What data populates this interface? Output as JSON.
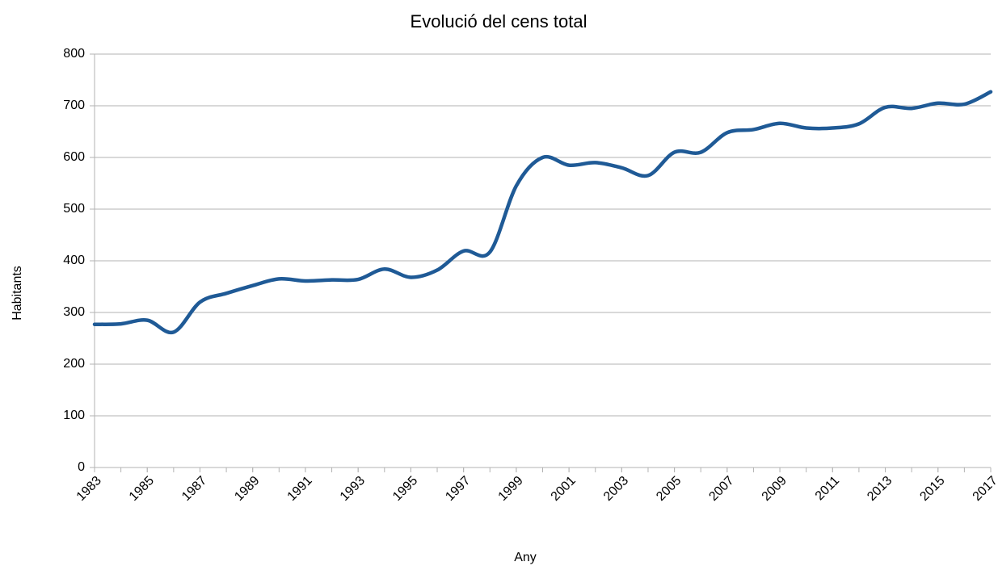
{
  "chart_data": {
    "type": "line",
    "title": "Evolució del cens total",
    "x_label": "Any",
    "y_label": "Habitants",
    "x": [
      1983,
      1984,
      1985,
      1986,
      1987,
      1988,
      1989,
      1990,
      1991,
      1992,
      1993,
      1994,
      1995,
      1996,
      1997,
      1998,
      1999,
      2000,
      2001,
      2002,
      2003,
      2004,
      2005,
      2006,
      2007,
      2008,
      2009,
      2010,
      2011,
      2012,
      2013,
      2014,
      2015,
      2016,
      2017
    ],
    "series": [
      {
        "name": "Habitants",
        "color": "#1f5a96",
        "values": [
          277,
          278,
          285,
          262,
          320,
          337,
          352,
          365,
          361,
          363,
          364,
          384,
          368,
          382,
          419,
          417,
          545,
          600,
          585,
          590,
          580,
          565,
          610,
          610,
          648,
          654,
          666,
          657,
          657,
          665,
          697,
          695,
          705,
          703,
          727
        ]
      }
    ],
    "xlim": [
      1983,
      2017
    ],
    "xticks": [
      1983,
      1985,
      1987,
      1989,
      1991,
      1993,
      1995,
      1997,
      1999,
      2001,
      2003,
      2005,
      2007,
      2009,
      2011,
      2013,
      2015,
      2017
    ],
    "ylim": [
      0,
      800
    ],
    "yticks": [
      0,
      100,
      200,
      300,
      400,
      500,
      600,
      700,
      800
    ],
    "grid": true
  }
}
